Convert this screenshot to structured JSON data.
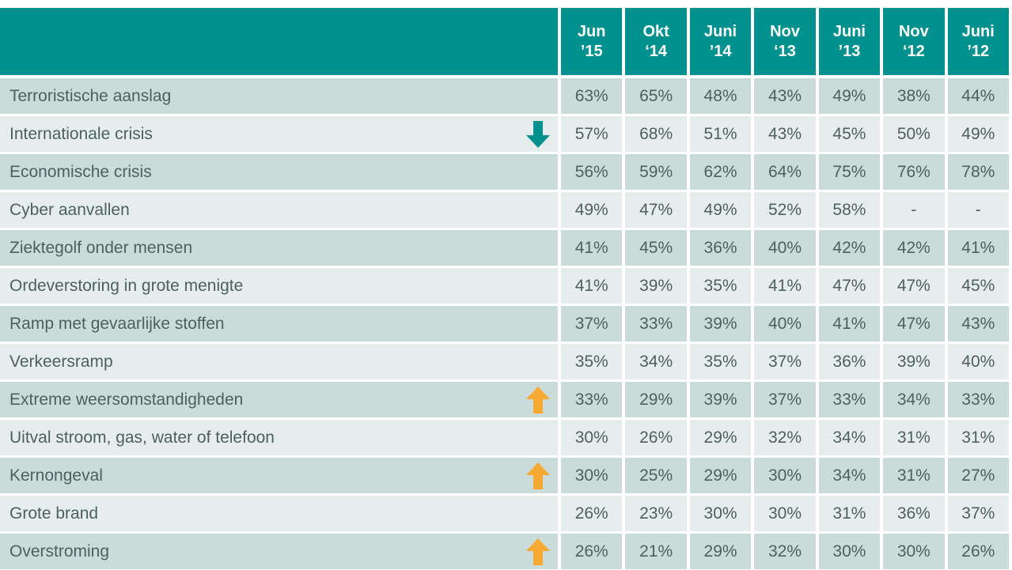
{
  "table": {
    "header": [
      [
        "Jun",
        "’15"
      ],
      [
        "Okt",
        "‘14"
      ],
      [
        "Juni",
        "’14"
      ],
      [
        "Nov",
        "‘13"
      ],
      [
        "Juni",
        "’13"
      ],
      [
        "Nov",
        "‘12"
      ],
      [
        "Juni",
        "’12"
      ]
    ],
    "rows": [
      {
        "label": "Terroristische aanslag",
        "values": [
          "63%",
          "65%",
          "48%",
          "43%",
          "49%",
          "38%",
          "44%"
        ]
      },
      {
        "label": "Internationale crisis",
        "values": [
          "57%",
          "68%",
          "51%",
          "43%",
          "45%",
          "50%",
          "49%"
        ]
      },
      {
        "label": "Economische crisis",
        "values": [
          "56%",
          "59%",
          "62%",
          "64%",
          "75%",
          "76%",
          "78%"
        ]
      },
      {
        "label": "Cyber aanvallen",
        "values": [
          "49%",
          "47%",
          "49%",
          "52%",
          "58%",
          "-",
          "-"
        ]
      },
      {
        "label": "Ziektegolf onder mensen",
        "values": [
          "41%",
          "45%",
          "36%",
          "40%",
          "42%",
          "42%",
          "41%"
        ]
      },
      {
        "label": "Ordeverstoring in grote menigte",
        "values": [
          "41%",
          "39%",
          "35%",
          "41%",
          "47%",
          "47%",
          "45%"
        ]
      },
      {
        "label": "Ramp met gevaarlijke stoffen",
        "values": [
          "37%",
          "33%",
          "39%",
          "40%",
          "41%",
          "47%",
          "43%"
        ]
      },
      {
        "label": "Verkeersramp",
        "values": [
          "35%",
          "34%",
          "35%",
          "37%",
          "36%",
          "39%",
          "40%"
        ]
      },
      {
        "label": "Extreme weersomstandigheden",
        "values": [
          "33%",
          "29%",
          "39%",
          "37%",
          "33%",
          "34%",
          "33%"
        ]
      },
      {
        "label": "Uitval stroom, gas, water of telefoon",
        "values": [
          "30%",
          "26%",
          "29%",
          "32%",
          "34%",
          "31%",
          "31%"
        ]
      },
      {
        "label": "Kernongeval",
        "values": [
          "30%",
          "25%",
          "29%",
          "30%",
          "34%",
          "31%",
          "27%"
        ]
      },
      {
        "label": "Grote brand",
        "values": [
          "26%",
          "23%",
          "30%",
          "30%",
          "31%",
          "36%",
          "37%"
        ]
      },
      {
        "label": "Overstroming",
        "values": [
          "26%",
          "21%",
          "29%",
          "32%",
          "30%",
          "30%",
          "26%"
        ]
      }
    ]
  }
}
